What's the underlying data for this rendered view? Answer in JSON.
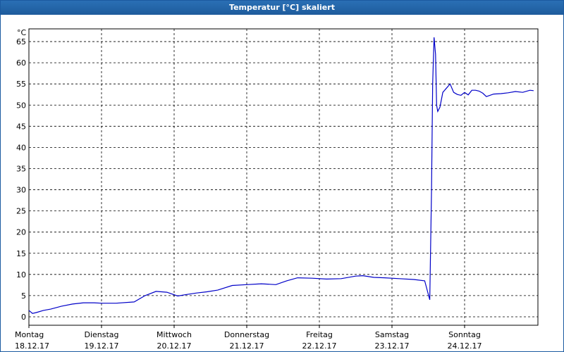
{
  "window": {
    "title": "Temperatur [°C] skaliert"
  },
  "chart_data": {
    "type": "line",
    "title": "Temperatur [°C] skaliert",
    "unit_label": "°C",
    "ylim": [
      -2,
      68
    ],
    "y_ticks": [
      0,
      5,
      10,
      15,
      20,
      25,
      30,
      35,
      40,
      45,
      50,
      55,
      60,
      65
    ],
    "xlim": [
      0,
      7
    ],
    "x_ticks": [
      {
        "day": "Montag",
        "date": "18.12.17"
      },
      {
        "day": "Dienstag",
        "date": "19.12.17"
      },
      {
        "day": "Mittwoch",
        "date": "20.12.17"
      },
      {
        "day": "Donnerstag",
        "date": "21.12.17"
      },
      {
        "day": "Freitag",
        "date": "22.12.17"
      },
      {
        "day": "Samstag",
        "date": "23.12.17"
      },
      {
        "day": "Sonntag",
        "date": "24.12.17"
      }
    ],
    "grid": true,
    "line_color": "#0000c8",
    "series": [
      {
        "x": [
          0,
          0.05,
          0.1,
          0.2,
          0.3,
          0.45,
          0.6,
          0.75,
          0.9,
          1.0,
          1.2,
          1.45,
          1.6,
          1.75,
          1.9,
          2.05,
          2.15,
          2.3,
          2.45,
          2.6,
          2.8,
          3.0,
          3.2,
          3.4,
          3.55,
          3.7,
          3.9,
          4.1,
          4.3,
          4.5,
          4.6,
          4.75,
          4.9,
          5.1,
          5.3,
          5.45,
          5.52,
          5.545,
          5.56,
          5.58,
          5.6,
          5.615,
          5.63,
          5.66,
          5.7,
          5.75,
          5.8,
          5.85,
          5.9,
          5.95,
          6.0,
          6.05,
          6.1,
          6.15,
          6.2,
          6.25,
          6.3,
          6.4,
          6.5,
          6.6,
          6.7,
          6.8,
          6.9,
          6.95
        ],
        "y": [
          1.5,
          0.8,
          1.0,
          1.5,
          1.8,
          2.5,
          3.0,
          3.3,
          3.3,
          3.2,
          3.2,
          3.5,
          5.0,
          6.0,
          5.8,
          4.9,
          5.2,
          5.6,
          5.9,
          6.3,
          7.4,
          7.6,
          7.8,
          7.6,
          8.5,
          9.2,
          9.1,
          8.9,
          9.0,
          9.6,
          9.7,
          9.3,
          9.2,
          9.0,
          8.8,
          8.5,
          4.0,
          30.0,
          55.0,
          66.0,
          62.0,
          50.0,
          48.5,
          49.5,
          53.0,
          54.0,
          55.0,
          53.0,
          52.5,
          52.3,
          53.0,
          52.4,
          53.5,
          53.5,
          53.3,
          52.8,
          52.0,
          52.6,
          52.7,
          52.9,
          53.2,
          53.0,
          53.5,
          53.4
        ]
      }
    ]
  }
}
